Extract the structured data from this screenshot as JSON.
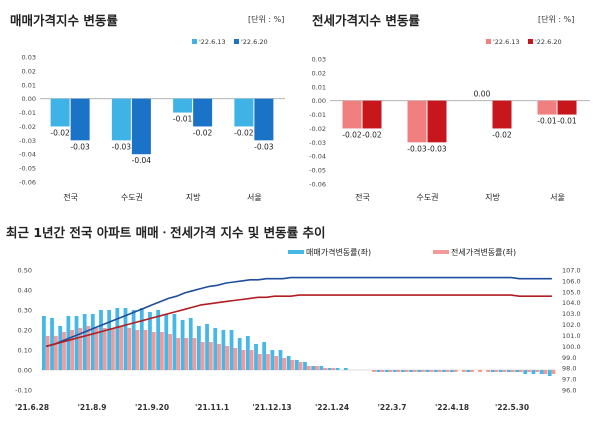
{
  "colors": {
    "sale_prev": "#3fb3e6",
    "sale_curr": "#1a73c6",
    "jeonse_prev": "#f08080",
    "jeonse_curr": "#c8161d",
    "sale_line": "#1f4e9c",
    "jeonse_line": "#b01e23",
    "bar_sale": "#46b8e8",
    "bar_jeonse": "#f29a9a"
  },
  "chart_data": [
    {
      "type": "bar",
      "title": "매매가격지수 변동률",
      "unit": "[단위 : %]",
      "categories": [
        "전국",
        "수도권",
        "지방",
        "서울"
      ],
      "series": [
        {
          "name": "'22.6.13",
          "values": [
            -0.02,
            -0.03,
            -0.01,
            -0.02
          ]
        },
        {
          "name": "'22.6.20",
          "values": [
            -0.03,
            -0.04,
            -0.02,
            -0.03
          ]
        }
      ],
      "data_labels": [
        [
          "-0.02",
          "-0.03",
          "-0.01",
          "-0.02"
        ],
        [
          "-0.03",
          "-0.04",
          "-0.02",
          "-0.03"
        ]
      ],
      "ylim": [
        -0.06,
        0.03
      ],
      "yticks": [
        "0.03",
        "0.02",
        "0.01",
        "0.00",
        "-0.01",
        "-0.02",
        "-0.03",
        "-0.04",
        "-0.05",
        "-0.06"
      ],
      "legend": "top-right"
    },
    {
      "type": "bar",
      "title": "전세가격지수 변동률",
      "unit": "[단위 : %]",
      "categories": [
        "전국",
        "수도권",
        "지방",
        "서울"
      ],
      "series": [
        {
          "name": "'22.6.13",
          "values": [
            -0.02,
            -0.03,
            0.0,
            -0.01
          ]
        },
        {
          "name": "'22.6.20",
          "values": [
            -0.02,
            -0.03,
            -0.02,
            -0.01
          ]
        }
      ],
      "data_labels": [
        [
          "-0.02",
          "-0.03",
          "0.00",
          "-0.01"
        ],
        [
          "-0.02",
          "-0.03",
          "-0.02",
          "-0.01"
        ]
      ],
      "ylim": [
        -0.06,
        0.03
      ],
      "yticks": [
        "0.03",
        "0.02",
        "0.01",
        "0.00",
        "-0.01",
        "-0.02",
        "-0.03",
        "-0.04",
        "-0.05",
        "-0.06"
      ],
      "legend": "top-right"
    },
    {
      "type": "bar+line",
      "title": "최근 1년간 전국 아파트 매매ㆍ전세가격 지수 및 변동률 추이",
      "xticks": [
        "'21.6.28",
        "'21.8.9",
        "'21.9.20",
        "'21.11.1",
        "'21.12.13",
        "'22.1.24",
        "'22.3.7",
        "'22.4.18",
        "'22.5.30"
      ],
      "yticks_left": [
        "0.50",
        "0.40",
        "0.30",
        "0.20",
        "0.10",
        "0.00",
        "-0.10"
      ],
      "yticks_right": [
        "107.0",
        "106.0",
        "105.0",
        "104.0",
        "103.0",
        "102.0",
        "101.0",
        "100.0",
        "99.0",
        "98.0",
        "97.0",
        "96.0"
      ],
      "ylim_left": [
        -0.1,
        0.5
      ],
      "ylim_right": [
        96.0,
        107.0
      ],
      "legend": [
        "매매가격변동률(좌)",
        "전세가격변동률(좌)"
      ],
      "sale_rate": [
        0.27,
        0.26,
        0.22,
        0.27,
        0.27,
        0.28,
        0.28,
        0.3,
        0.3,
        0.31,
        0.31,
        0.3,
        0.31,
        0.29,
        0.3,
        0.28,
        0.28,
        0.25,
        0.26,
        0.22,
        0.23,
        0.21,
        0.2,
        0.2,
        0.16,
        0.17,
        0.13,
        0.14,
        0.1,
        0.1,
        0.07,
        0.05,
        0.04,
        0.02,
        0.02,
        0.01,
        0.01,
        0.01,
        0.0,
        0.0,
        0.0,
        -0.01,
        -0.01,
        -0.01,
        -0.01,
        -0.01,
        -0.01,
        -0.01,
        -0.01,
        -0.01,
        -0.01,
        0.0,
        -0.01,
        0.0,
        0.0,
        -0.01,
        -0.01,
        -0.01,
        -0.01,
        -0.02,
        -0.02,
        -0.02,
        -0.03
      ],
      "jeonse_rate": [
        0.17,
        0.17,
        0.19,
        0.2,
        0.21,
        0.22,
        0.21,
        0.21,
        0.21,
        0.22,
        0.21,
        0.2,
        0.2,
        0.19,
        0.19,
        0.18,
        0.16,
        0.16,
        0.16,
        0.14,
        0.14,
        0.13,
        0.12,
        0.11,
        0.1,
        0.1,
        0.08,
        0.08,
        0.07,
        0.06,
        0.05,
        0.04,
        0.02,
        0.02,
        0.01,
        0.01,
        0.0,
        0.0,
        0.0,
        0.0,
        -0.01,
        -0.01,
        -0.01,
        -0.01,
        -0.01,
        -0.01,
        -0.01,
        -0.01,
        -0.01,
        -0.01,
        -0.01,
        -0.01,
        -0.01,
        -0.01,
        -0.01,
        -0.01,
        -0.01,
        -0.01,
        -0.01,
        -0.01,
        -0.01,
        -0.02,
        -0.02
      ],
      "sale_index": [
        100.0,
        100.2,
        100.5,
        100.8,
        101.1,
        101.4,
        101.7,
        102.0,
        102.3,
        102.6,
        102.9,
        103.2,
        103.5,
        103.8,
        104.1,
        104.4,
        104.6,
        104.9,
        105.1,
        105.3,
        105.5,
        105.6,
        105.8,
        105.9,
        106.0,
        106.1,
        106.1,
        106.2,
        106.2,
        106.2,
        106.3,
        106.3,
        106.3,
        106.3,
        106.3,
        106.3,
        106.3,
        106.3,
        106.3,
        106.3,
        106.3,
        106.3,
        106.3,
        106.3,
        106.3,
        106.3,
        106.3,
        106.3,
        106.3,
        106.3,
        106.3,
        106.3,
        106.3,
        106.3,
        106.3,
        106.3,
        106.3,
        106.3,
        106.2,
        106.2,
        106.2,
        106.2,
        106.2
      ],
      "jeonse_index": [
        100.0,
        100.2,
        100.4,
        100.6,
        100.8,
        101.0,
        101.2,
        101.4,
        101.6,
        101.8,
        102.0,
        102.2,
        102.4,
        102.6,
        102.8,
        103.0,
        103.2,
        103.4,
        103.6,
        103.8,
        103.9,
        104.0,
        104.1,
        104.2,
        104.3,
        104.4,
        104.5,
        104.5,
        104.6,
        104.6,
        104.6,
        104.7,
        104.7,
        104.7,
        104.7,
        104.7,
        104.7,
        104.7,
        104.7,
        104.7,
        104.7,
        104.7,
        104.7,
        104.7,
        104.7,
        104.7,
        104.7,
        104.7,
        104.7,
        104.7,
        104.7,
        104.7,
        104.7,
        104.7,
        104.7,
        104.7,
        104.7,
        104.7,
        104.6,
        104.6,
        104.6,
        104.6,
        104.6
      ]
    }
  ]
}
